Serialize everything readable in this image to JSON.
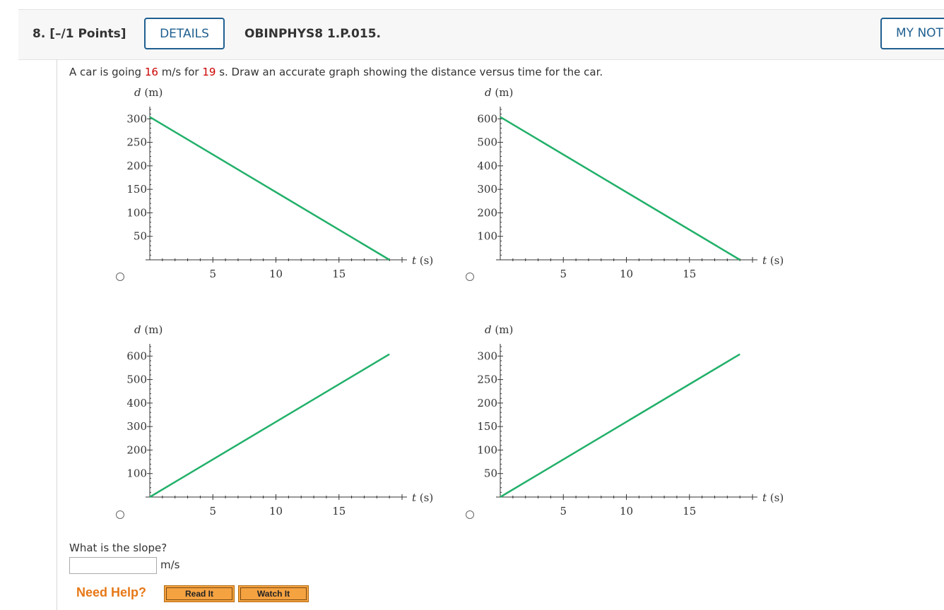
{
  "header": {
    "question_number": "8.",
    "points": "[–/1 Points]",
    "details_label": "DETAILS",
    "problem_code": "OBINPHYS8 1.P.015.",
    "my_notes_label": "MY NOTES"
  },
  "prompt": {
    "part1": "A car is going ",
    "speed": "16",
    "part2": " m/s for ",
    "time": "19",
    "part3": " s. Draw an accurate graph showing the distance versus time for the car."
  },
  "graph_labels": {
    "y_axis": "d",
    "y_unit": "(m)",
    "x_axis": "t",
    "x_unit": "(s)"
  },
  "colors": {
    "line": "#22b06a",
    "accent": "#1f5f8f",
    "red": "#cc0000",
    "help_orange": "#e77817"
  },
  "chart_data": [
    {
      "type": "line",
      "option": "top-left",
      "xlabel": "t (s)",
      "ylabel": "d (m)",
      "x_ticks": [
        "5",
        "10",
        "15"
      ],
      "y_ticks": [
        "50",
        "100",
        "150",
        "200",
        "250",
        "300"
      ],
      "xlim": [
        0,
        20
      ],
      "ylim": [
        0,
        320
      ],
      "series": [
        {
          "x": [
            0,
            19
          ],
          "y": [
            304,
            0
          ]
        }
      ]
    },
    {
      "type": "line",
      "option": "top-right",
      "xlabel": "t (s)",
      "ylabel": "d (m)",
      "x_ticks": [
        "5",
        "10",
        "15"
      ],
      "y_ticks": [
        "100",
        "200",
        "300",
        "400",
        "500",
        "600"
      ],
      "xlim": [
        0,
        20
      ],
      "ylim": [
        0,
        640
      ],
      "series": [
        {
          "x": [
            0,
            19
          ],
          "y": [
            608,
            0
          ]
        }
      ]
    },
    {
      "type": "line",
      "option": "bottom-left",
      "xlabel": "t (s)",
      "ylabel": "d (m)",
      "x_ticks": [
        "5",
        "10",
        "15"
      ],
      "y_ticks": [
        "100",
        "200",
        "300",
        "400",
        "500",
        "600"
      ],
      "xlim": [
        0,
        20
      ],
      "ylim": [
        0,
        640
      ],
      "series": [
        {
          "x": [
            0,
            19
          ],
          "y": [
            0,
            608
          ]
        }
      ]
    },
    {
      "type": "line",
      "option": "bottom-right",
      "xlabel": "t (s)",
      "ylabel": "d (m)",
      "x_ticks": [
        "5",
        "10",
        "15"
      ],
      "y_ticks": [
        "50",
        "100",
        "150",
        "200",
        "250",
        "300"
      ],
      "xlim": [
        0,
        20
      ],
      "ylim": [
        0,
        320
      ],
      "series": [
        {
          "x": [
            0,
            19
          ],
          "y": [
            0,
            304
          ]
        }
      ]
    }
  ],
  "slope": {
    "question": "What is the slope?",
    "value": "",
    "unit": "m/s"
  },
  "help": {
    "need_help": "Need Help?",
    "read_it": "Read It",
    "watch_it": "Watch It"
  }
}
